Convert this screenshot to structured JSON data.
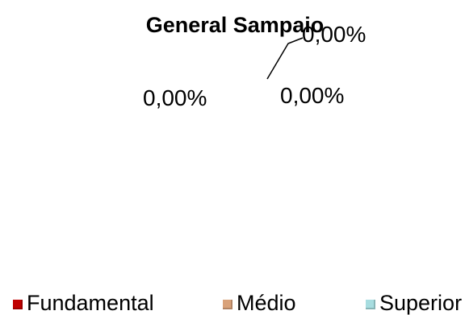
{
  "chart_data": {
    "type": "pie",
    "title": "General Sampaio",
    "categories": [
      "Fundamental",
      "Médio",
      "Superior"
    ],
    "values": [
      0,
      0,
      0
    ],
    "data_labels": [
      "0,00%",
      "0,00%",
      "0,00%"
    ],
    "colors": [
      "#c00000",
      "#d9a27a",
      "#a7dde0"
    ],
    "legend_position": "bottom"
  }
}
